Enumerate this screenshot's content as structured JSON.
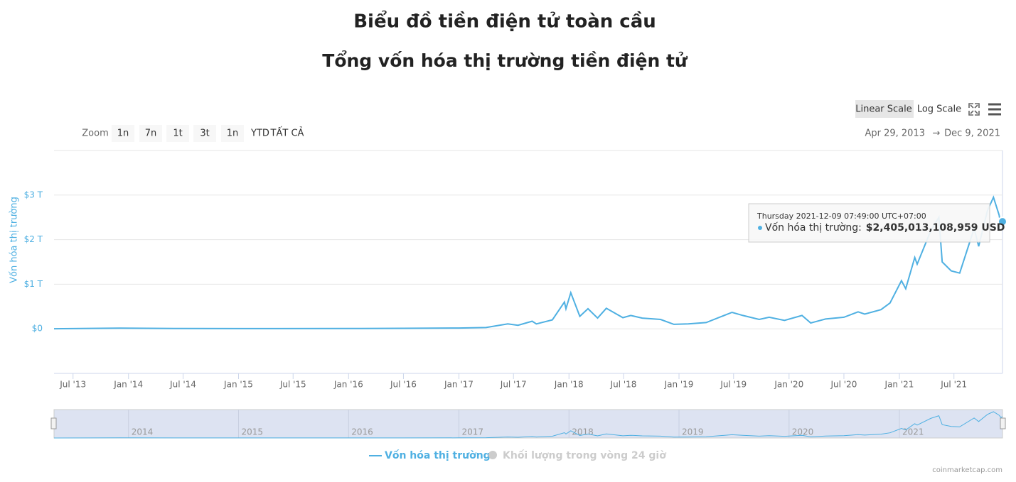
{
  "chart_data": {
    "type": "line",
    "title": "Biểu đồ tiền điện tử toàn cầu",
    "subtitle": "Tổng vốn hóa thị trường tiền điện tử",
    "y_axis_label": "Vốn hóa thị trường",
    "x": [
      "2013-04-29",
      "2013-12-04",
      "2014-06-01",
      "2015-01-15",
      "2016-01-01",
      "2016-07-01",
      "2017-01-01",
      "2017-04-01",
      "2017-06-12",
      "2017-07-16",
      "2017-09-01",
      "2017-09-15",
      "2017-11-07",
      "2017-12-17",
      "2017-12-22",
      "2018-01-07",
      "2018-02-06",
      "2018-03-05",
      "2018-04-06",
      "2018-05-05",
      "2018-06-29",
      "2018-07-25",
      "2018-09-01",
      "2018-11-01",
      "2018-12-15",
      "2019-02-01",
      "2019-04-01",
      "2019-06-26",
      "2019-08-01",
      "2019-09-24",
      "2019-10-27",
      "2019-12-17",
      "2020-02-13",
      "2020-03-13",
      "2020-05-01",
      "2020-07-01",
      "2020-08-17",
      "2020-09-08",
      "2020-11-01",
      "2020-12-01",
      "2021-01-08",
      "2021-01-22",
      "2021-02-21",
      "2021-03-01",
      "2021-04-15",
      "2021-05-12",
      "2021-05-23",
      "2021-06-22",
      "2021-07-20",
      "2021-09-06",
      "2021-09-21",
      "2021-10-20",
      "2021-11-09",
      "2021-11-28",
      "2021-12-04",
      "2021-12-09"
    ],
    "series": [
      {
        "name": "Vốn hóa thị trường",
        "color": "#4fb0e2",
        "values": [
          0.0015,
          0.015,
          0.008,
          0.004,
          0.007,
          0.011,
          0.018,
          0.028,
          0.11,
          0.08,
          0.17,
          0.11,
          0.2,
          0.6,
          0.45,
          0.81,
          0.28,
          0.45,
          0.24,
          0.46,
          0.25,
          0.3,
          0.24,
          0.21,
          0.1,
          0.11,
          0.14,
          0.37,
          0.3,
          0.21,
          0.26,
          0.19,
          0.3,
          0.13,
          0.22,
          0.26,
          0.38,
          0.33,
          0.43,
          0.58,
          1.08,
          0.9,
          1.6,
          1.45,
          2.2,
          2.5,
          1.5,
          1.3,
          1.25,
          2.25,
          1.85,
          2.65,
          2.95,
          2.55,
          2.3,
          2.405013108959
        ]
      },
      {
        "name": "Khối lượng trong vòng 24 giờ",
        "color": "#cccccc",
        "visible": false
      }
    ],
    "xlim": [
      "2013-04-29",
      "2021-12-09"
    ],
    "ylim": [
      -1,
      4
    ],
    "yticks": [
      {
        "value": 0,
        "label": "$0"
      },
      {
        "value": 1,
        "label": "$1 T"
      },
      {
        "value": 2,
        "label": "$2 T"
      },
      {
        "value": 3,
        "label": "$3 T"
      }
    ],
    "xticks": [
      {
        "value": "2013-07-01",
        "label": "Jul '13"
      },
      {
        "value": "2014-01-01",
        "label": "Jan '14"
      },
      {
        "value": "2014-07-01",
        "label": "Jul '14"
      },
      {
        "value": "2015-01-01",
        "label": "Jan '15"
      },
      {
        "value": "2015-07-01",
        "label": "Jul '15"
      },
      {
        "value": "2016-01-01",
        "label": "Jan '16"
      },
      {
        "value": "2016-07-01",
        "label": "Jul '16"
      },
      {
        "value": "2017-01-01",
        "label": "Jan '17"
      },
      {
        "value": "2017-07-01",
        "label": "Jul '17"
      },
      {
        "value": "2018-01-01",
        "label": "Jan '18"
      },
      {
        "value": "2018-07-01",
        "label": "Jul '18"
      },
      {
        "value": "2019-01-01",
        "label": "Jan '19"
      },
      {
        "value": "2019-07-01",
        "label": "Jul '19"
      },
      {
        "value": "2020-01-01",
        "label": "Jan '20"
      },
      {
        "value": "2020-07-01",
        "label": "Jul '20"
      },
      {
        "value": "2021-01-01",
        "label": "Jan '21"
      },
      {
        "value": "2021-07-01",
        "label": "Jul '21"
      }
    ],
    "grid": true,
    "tooltip": {
      "header": "Thursday 2021-12-09 07:49:00 UTC+07:00",
      "name": "Vốn hóa thị trường:",
      "value": "$2,405,013,108,959 USD"
    },
    "navigator": {
      "xticks": [
        {
          "value": "2014-01-01",
          "label": "2014"
        },
        {
          "value": "2015-01-01",
          "label": "2015"
        },
        {
          "value": "2016-01-01",
          "label": "2016"
        },
        {
          "value": "2017-01-01",
          "label": "2017"
        },
        {
          "value": "2018-01-01",
          "label": "2018"
        },
        {
          "value": "2019-01-01",
          "label": "2019"
        },
        {
          "value": "2020-01-01",
          "label": "2020"
        },
        {
          "value": "2021-01-01",
          "label": "2021"
        }
      ]
    },
    "ui": {
      "zoom_label": "Zoom",
      "zoom_buttons": [
        "1n",
        "7n",
        "1t",
        "3t",
        "1n",
        "YTD",
        "TẤT CẢ"
      ],
      "scale_buttons": [
        "Linear Scale",
        "Log Scale"
      ],
      "range_from": "Apr 29, 2013",
      "range_arrow": "→",
      "range_to": "Dec 9, 2021",
      "credit": "coinmarketcap.com"
    }
  }
}
